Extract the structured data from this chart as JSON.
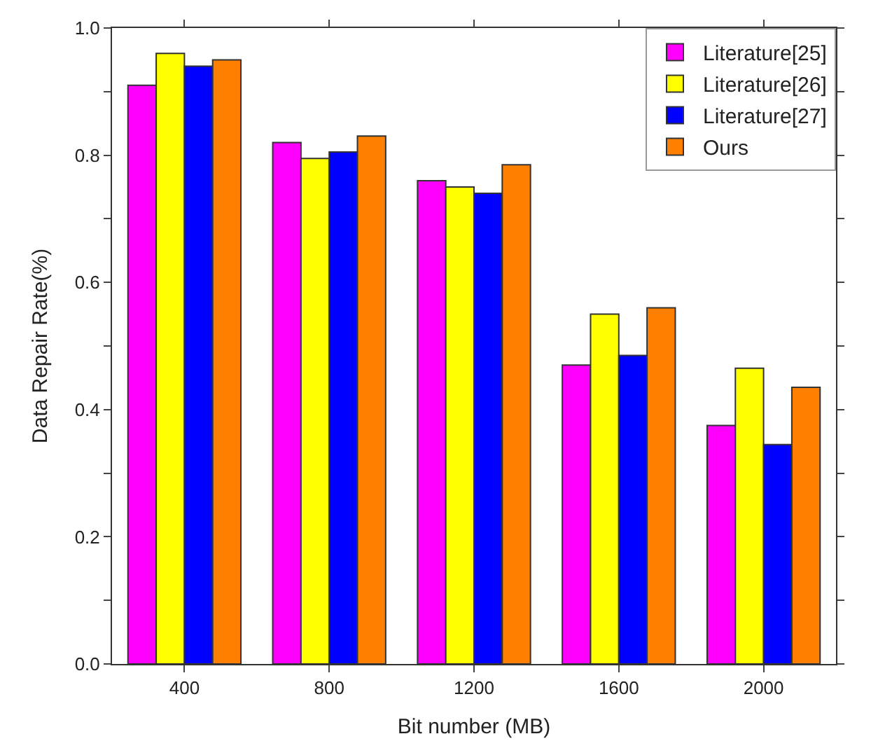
{
  "chart_data": {
    "type": "bar",
    "xlabel": "Bit number (MB)",
    "ylabel": "Data Repair Rate(%)",
    "categories": [
      "400",
      "800",
      "1200",
      "1600",
      "2000"
    ],
    "series": [
      {
        "name": "Literature[25]",
        "color": "#ff00ff",
        "values": [
          0.91,
          0.82,
          0.76,
          0.47,
          0.375
        ]
      },
      {
        "name": "Literature[26]",
        "color": "#ffff00",
        "values": [
          0.96,
          0.795,
          0.75,
          0.55,
          0.465
        ]
      },
      {
        "name": "Literature[27]",
        "color": "#0000ff",
        "values": [
          0.94,
          0.805,
          0.74,
          0.485,
          0.345
        ]
      },
      {
        "name": "Ours",
        "color": "#ff8000",
        "values": [
          0.95,
          0.83,
          0.785,
          0.56,
          0.435
        ]
      }
    ],
    "ylim": [
      0,
      1
    ],
    "yticks": [
      {
        "value": 0,
        "label": "0.0"
      },
      {
        "value": 0.1,
        "label": null
      },
      {
        "value": 0.2,
        "label": "0.2"
      },
      {
        "value": 0.3,
        "label": null
      },
      {
        "value": 0.4,
        "label": "0.4"
      },
      {
        "value": 0.5,
        "label": null
      },
      {
        "value": 0.6,
        "label": "0.6"
      },
      {
        "value": 0.7,
        "label": null
      },
      {
        "value": 0.8,
        "label": "0.8"
      },
      {
        "value": 0.9,
        "label": null
      },
      {
        "value": 1,
        "label": "1.0"
      }
    ],
    "legend": "top right"
  }
}
